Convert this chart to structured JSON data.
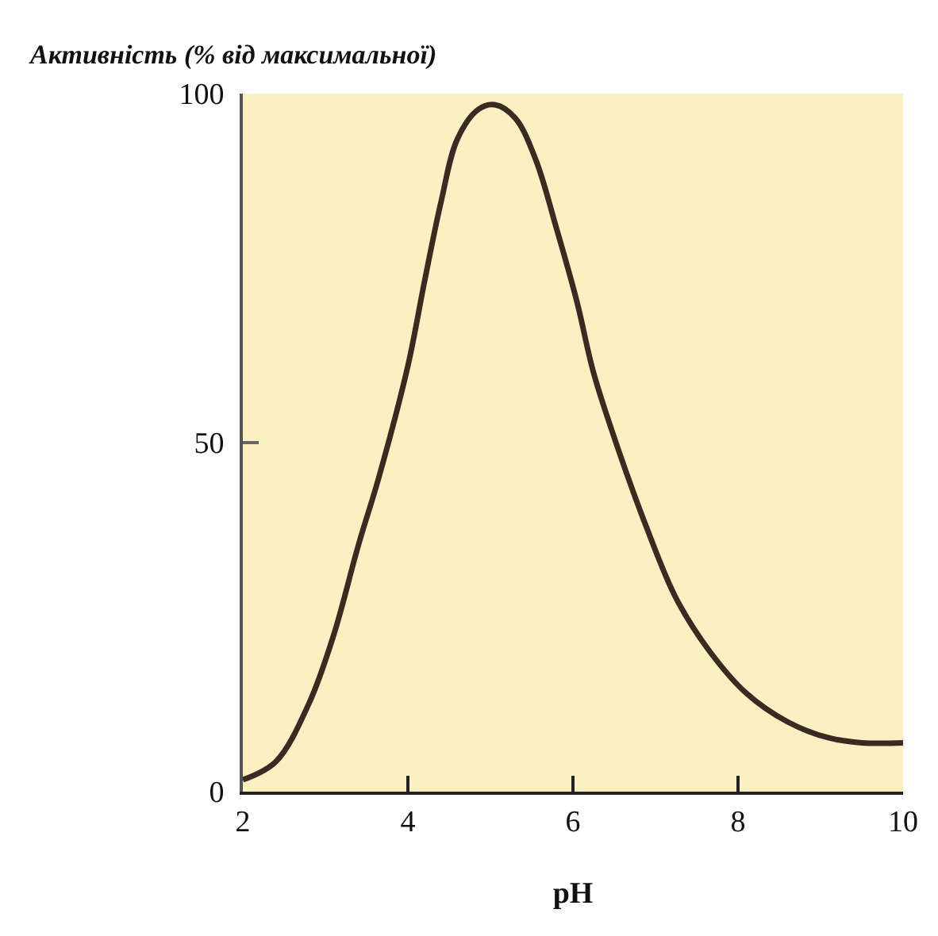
{
  "chart_data": {
    "type": "line",
    "ylabel": "Активність (% від максимальної)",
    "xlabel": "pH",
    "x": [
      2.0,
      2.4,
      2.8,
      3.1,
      3.4,
      3.65,
      4.0,
      4.2,
      4.4,
      4.6,
      4.85,
      5.05,
      5.3,
      5.55,
      5.8,
      6.05,
      6.25,
      6.55,
      6.9,
      7.25,
      7.65,
      8.1,
      8.6,
      9.1,
      9.5,
      10.0
    ],
    "series": [
      {
        "color": "#3a2a22",
        "values": [
          1.7,
          4.3,
          12.6,
          22.4,
          35.3,
          45.1,
          61,
          73,
          84.4,
          93.5,
          97.7,
          98.4,
          96.5,
          90.5,
          80.7,
          70.1,
          60,
          49,
          37.6,
          27.7,
          20.2,
          14.1,
          10.0,
          7.7,
          7.0,
          7.0
        ]
      }
    ],
    "xlim": [
      2,
      10
    ],
    "xticks": [
      2,
      4,
      6,
      8,
      10
    ],
    "ylim": [
      0,
      100
    ],
    "yticks": [
      0,
      50,
      100
    ],
    "grid": false,
    "marker": "none",
    "line_style": "solid"
  }
}
